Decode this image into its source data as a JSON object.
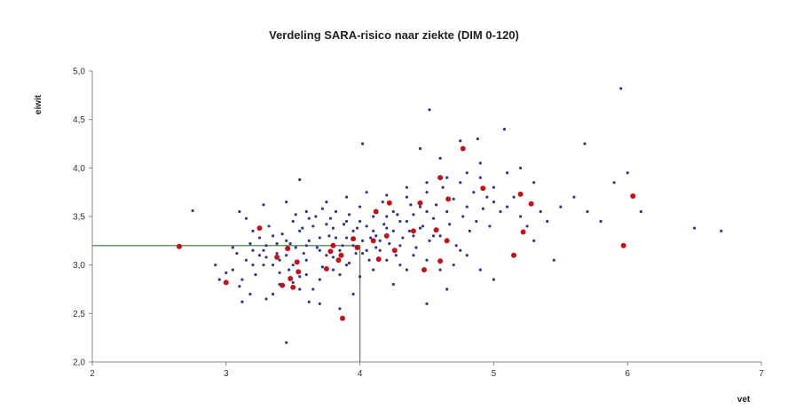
{
  "chart_data": {
    "type": "scatter",
    "title": "Verdeling SARA-risico naar ziekte (DIM 0-120)",
    "xlabel": "vet",
    "ylabel": "eiwit",
    "xlim": [
      2,
      7
    ],
    "ylim": [
      2.0,
      5.0
    ],
    "xticks": [
      "2",
      "3",
      "4",
      "5",
      "6",
      "7"
    ],
    "yticks": [
      "2,0",
      "2,5",
      "3,0",
      "3,5",
      "4,0",
      "4,5",
      "5,0"
    ],
    "grid": false,
    "legend": "none",
    "reference_lines": {
      "x": 4.0,
      "y": 3.2,
      "color": "#5b8a5b"
    },
    "colors": {
      "series_a": "#2e3a87",
      "series_b": "#c0141c"
    },
    "series": [
      {
        "values": [
          [
            2.75,
            3.56
          ],
          [
            3.05,
            2.95
          ],
          [
            3.08,
            3.12
          ],
          [
            3.12,
            2.85
          ],
          [
            3.15,
            3.05
          ],
          [
            3.18,
            2.7
          ],
          [
            3.2,
            3.0
          ],
          [
            3.22,
            2.9
          ],
          [
            3.25,
            3.28
          ],
          [
            3.28,
            3.15
          ],
          [
            3.3,
            2.65
          ],
          [
            3.32,
            3.4
          ],
          [
            3.35,
            3.0
          ],
          [
            3.38,
            3.22
          ],
          [
            3.4,
            2.8
          ],
          [
            3.42,
            3.32
          ],
          [
            3.45,
            3.1
          ],
          [
            3.47,
            2.95
          ],
          [
            3.5,
            3.45
          ],
          [
            3.52,
            3.18
          ],
          [
            3.55,
            2.88
          ],
          [
            3.57,
            3.38
          ],
          [
            3.6,
            3.05
          ],
          [
            3.62,
            3.25
          ],
          [
            3.65,
            2.75
          ],
          [
            3.67,
            3.5
          ],
          [
            3.7,
            3.15
          ],
          [
            3.72,
            2.98
          ],
          [
            3.75,
            3.42
          ],
          [
            3.77,
            3.3
          ],
          [
            3.8,
            3.08
          ],
          [
            3.82,
            3.55
          ],
          [
            3.85,
            2.9
          ],
          [
            3.87,
            3.2
          ],
          [
            3.9,
            3.45
          ],
          [
            3.92,
            3.02
          ],
          [
            3.95,
            3.35
          ],
          [
            3.97,
            3.12
          ],
          [
            4.0,
            3.6
          ],
          [
            4.02,
            3.25
          ],
          [
            4.05,
            3.4
          ],
          [
            4.07,
            3.05
          ],
          [
            4.1,
            3.5
          ],
          [
            4.12,
            3.3
          ],
          [
            4.15,
            3.15
          ],
          [
            4.17,
            3.65
          ],
          [
            4.2,
            3.38
          ],
          [
            4.22,
            3.22
          ],
          [
            4.25,
            3.55
          ],
          [
            4.27,
            3.1
          ],
          [
            4.3,
            3.45
          ],
          [
            4.32,
            3.28
          ],
          [
            4.35,
            3.7
          ],
          [
            4.37,
            3.35
          ],
          [
            4.4,
            3.52
          ],
          [
            4.42,
            3.18
          ],
          [
            4.45,
            3.6
          ],
          [
            4.47,
            3.4
          ],
          [
            4.5,
            3.75
          ],
          [
            4.52,
            3.25
          ],
          [
            4.55,
            3.48
          ],
          [
            4.57,
            3.62
          ],
          [
            4.6,
            3.3
          ],
          [
            4.62,
            3.8
          ],
          [
            4.65,
            3.55
          ],
          [
            4.67,
            3.42
          ],
          [
            4.7,
            3.68
          ],
          [
            4.72,
            3.2
          ],
          [
            4.75,
            3.85
          ],
          [
            4.77,
            3.5
          ],
          [
            4.8,
            3.6
          ],
          [
            4.82,
            3.35
          ],
          [
            4.85,
            3.75
          ],
          [
            4.87,
            3.45
          ],
          [
            4.9,
            3.9
          ],
          [
            4.92,
            3.58
          ],
          [
            4.95,
            3.7
          ],
          [
            4.97,
            3.4
          ],
          [
            5.0,
            3.65
          ],
          [
            5.05,
            3.55
          ],
          [
            3.1,
            3.55
          ],
          [
            3.15,
            3.48
          ],
          [
            3.2,
            3.35
          ],
          [
            3.25,
            3.1
          ],
          [
            3.3,
            3.2
          ],
          [
            3.35,
            3.3
          ],
          [
            3.4,
            3.05
          ],
          [
            3.45,
            3.25
          ],
          [
            3.5,
            3.0
          ],
          [
            3.55,
            3.35
          ],
          [
            3.6,
            3.2
          ],
          [
            3.65,
            3.4
          ],
          [
            3.7,
            3.28
          ],
          [
            3.75,
            3.1
          ],
          [
            3.8,
            3.38
          ],
          [
            3.85,
            3.15
          ],
          [
            3.9,
            3.28
          ],
          [
            3.95,
            3.2
          ],
          [
            4.0,
            3.45
          ],
          [
            4.05,
            3.15
          ],
          [
            4.1,
            3.35
          ],
          [
            4.15,
            3.25
          ],
          [
            4.2,
            3.5
          ],
          [
            4.25,
            3.35
          ],
          [
            4.3,
            3.2
          ],
          [
            4.35,
            3.45
          ],
          [
            4.4,
            3.3
          ],
          [
            4.45,
            3.38
          ],
          [
            4.5,
            3.55
          ],
          [
            4.55,
            3.3
          ],
          [
            3.0,
            2.92
          ],
          [
            3.05,
            3.18
          ],
          [
            3.1,
            2.78
          ],
          [
            3.2,
            3.15
          ],
          [
            3.3,
            3.08
          ],
          [
            3.4,
            2.92
          ],
          [
            3.5,
            2.82
          ],
          [
            3.6,
            2.9
          ],
          [
            3.7,
            2.85
          ],
          [
            3.8,
            2.95
          ],
          [
            3.9,
            3.0
          ],
          [
            4.0,
            2.88
          ],
          [
            4.1,
            2.95
          ],
          [
            4.2,
            3.05
          ],
          [
            4.3,
            3.0
          ],
          [
            4.4,
            3.1
          ],
          [
            4.5,
            3.05
          ],
          [
            4.6,
            2.95
          ],
          [
            4.7,
            3.0
          ],
          [
            4.8,
            3.1
          ],
          [
            3.28,
            3.62
          ],
          [
            3.45,
            3.65
          ],
          [
            3.6,
            3.55
          ],
          [
            3.75,
            3.65
          ],
          [
            3.9,
            3.7
          ],
          [
            4.05,
            3.75
          ],
          [
            4.2,
            3.72
          ],
          [
            4.35,
            3.8
          ],
          [
            4.5,
            3.85
          ],
          [
            4.65,
            3.9
          ],
          [
            4.8,
            3.95
          ],
          [
            4.9,
            4.05
          ],
          [
            5.0,
            3.8
          ],
          [
            5.1,
            3.95
          ],
          [
            5.2,
            4.0
          ],
          [
            5.3,
            3.85
          ],
          [
            5.1,
            3.6
          ],
          [
            5.15,
            3.7
          ],
          [
            5.2,
            3.5
          ],
          [
            5.25,
            3.4
          ],
          [
            5.3,
            3.25
          ],
          [
            5.35,
            3.55
          ],
          [
            5.4,
            3.45
          ],
          [
            5.45,
            3.05
          ],
          [
            5.5,
            3.6
          ],
          [
            5.6,
            3.7
          ],
          [
            5.7,
            3.55
          ],
          [
            5.8,
            3.45
          ],
          [
            5.9,
            3.85
          ],
          [
            6.0,
            3.95
          ],
          [
            6.1,
            3.55
          ],
          [
            6.5,
            3.38
          ],
          [
            6.7,
            3.35
          ],
          [
            5.95,
            4.82
          ],
          [
            5.68,
            4.25
          ],
          [
            5.08,
            4.4
          ],
          [
            4.88,
            4.3
          ],
          [
            4.52,
            4.6
          ],
          [
            4.45,
            4.2
          ],
          [
            4.6,
            4.1
          ],
          [
            4.02,
            4.25
          ],
          [
            3.55,
            3.88
          ],
          [
            4.75,
            4.28
          ],
          [
            3.95,
            2.7
          ],
          [
            4.5,
            2.6
          ],
          [
            4.65,
            2.75
          ],
          [
            4.9,
            2.95
          ],
          [
            5.0,
            2.85
          ],
          [
            4.25,
            2.8
          ],
          [
            3.45,
            2.2
          ],
          [
            3.55,
            2.75
          ],
          [
            3.7,
            2.6
          ],
          [
            3.85,
            2.55
          ],
          [
            2.95,
            2.85
          ],
          [
            2.92,
            3.0
          ],
          [
            3.12,
            2.62
          ],
          [
            3.35,
            2.7
          ],
          [
            3.62,
            2.62
          ],
          [
            4.35,
            2.95
          ],
          [
            4.75,
            3.15
          ],
          [
            3.78,
            3.48
          ],
          [
            3.88,
            3.42
          ],
          [
            3.98,
            3.38
          ],
          [
            4.08,
            3.28
          ],
          [
            4.18,
            3.42
          ],
          [
            4.28,
            3.52
          ],
          [
            4.38,
            3.62
          ],
          [
            3.68,
            3.18
          ],
          [
            3.58,
            3.12
          ],
          [
            3.48,
            3.22
          ],
          [
            3.38,
            3.12
          ],
          [
            3.28,
            3.0
          ],
          [
            3.18,
            3.22
          ],
          [
            3.52,
            3.52
          ],
          [
            3.62,
            3.48
          ],
          [
            3.72,
            3.58
          ],
          [
            3.82,
            3.28
          ],
          [
            3.92,
            3.52
          ],
          [
            4.02,
            3.12
          ],
          [
            4.12,
            3.18
          ]
        ]
      },
      {
        "values": [
          [
            2.65,
            3.19
          ],
          [
            3.0,
            2.82
          ],
          [
            3.25,
            3.38
          ],
          [
            3.38,
            3.08
          ],
          [
            3.42,
            2.79
          ],
          [
            3.46,
            3.17
          ],
          [
            3.5,
            2.77
          ],
          [
            3.48,
            2.86
          ],
          [
            3.54,
            2.93
          ],
          [
            3.53,
            3.03
          ],
          [
            3.75,
            2.96
          ],
          [
            3.78,
            3.14
          ],
          [
            3.8,
            3.2
          ],
          [
            3.86,
            3.1
          ],
          [
            3.84,
            3.05
          ],
          [
            3.87,
            2.45
          ],
          [
            3.95,
            3.27
          ],
          [
            4.1,
            3.25
          ],
          [
            4.12,
            3.55
          ],
          [
            4.14,
            3.06
          ],
          [
            4.2,
            3.3
          ],
          [
            4.22,
            3.64
          ],
          [
            4.26,
            3.15
          ],
          [
            4.4,
            3.35
          ],
          [
            4.45,
            3.64
          ],
          [
            4.48,
            2.95
          ],
          [
            4.57,
            3.36
          ],
          [
            4.6,
            3.04
          ],
          [
            4.65,
            3.25
          ],
          [
            4.6,
            3.9
          ],
          [
            4.66,
            3.68
          ],
          [
            4.77,
            4.2
          ],
          [
            4.92,
            3.79
          ],
          [
            5.15,
            3.1
          ],
          [
            5.2,
            3.73
          ],
          [
            5.22,
            3.34
          ],
          [
            5.28,
            3.63
          ],
          [
            5.97,
            3.2
          ],
          [
            6.04,
            3.71
          ],
          [
            3.98,
            3.18
          ]
        ]
      }
    ]
  }
}
